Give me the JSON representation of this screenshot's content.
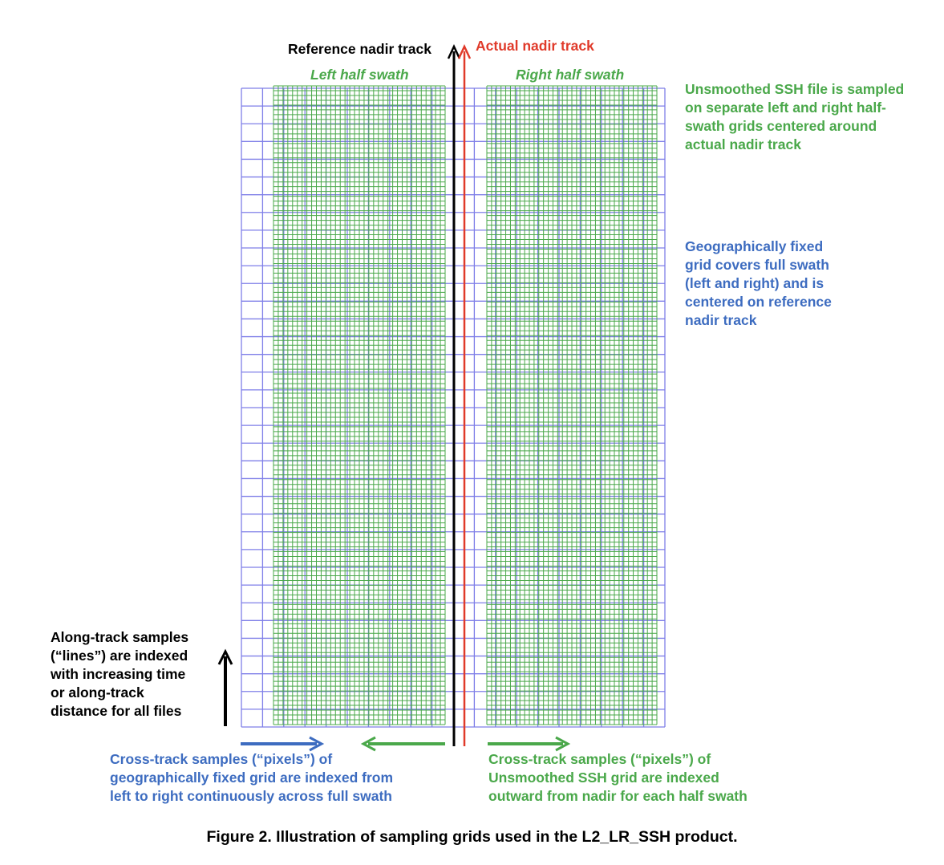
{
  "labels": {
    "reference_track": "Reference nadir track",
    "actual_track": "Actual nadir track",
    "left_half": "Left half swath",
    "right_half": "Right half swath"
  },
  "notes": {
    "unsmoothed": [
      "Unsmoothed SSH file is sampled",
      "on separate left and right half-",
      "swath grids centered around",
      "actual nadir track"
    ],
    "geographic": [
      "Geographically fixed",
      "grid covers full swath",
      "(left and right) and is",
      "centered on reference",
      "nadir track"
    ],
    "along_track": [
      "Along-track samples",
      "(“lines”) are indexed",
      "with increasing time",
      "or along-track",
      "distance for all files"
    ],
    "cross_blue": [
      "Cross-track samples (“pixels”) of",
      "geographically fixed grid are indexed from",
      "left to right continuously across full swath"
    ],
    "cross_green": [
      "Cross-track samples (“pixels”) of",
      "Unsmoothed SSH grid are indexed",
      "outward from nadir for each half swath"
    ]
  },
  "caption": "Figure 2. Illustration of sampling grids used in the L2_LR_SSH product.",
  "colors": {
    "blue_grid": "#7f7fe8",
    "green_grid": "#4aa84a",
    "blue_text": "#3d6cc0",
    "green_text": "#4aa84a",
    "red": "#e03a2a",
    "black": "#000000"
  }
}
